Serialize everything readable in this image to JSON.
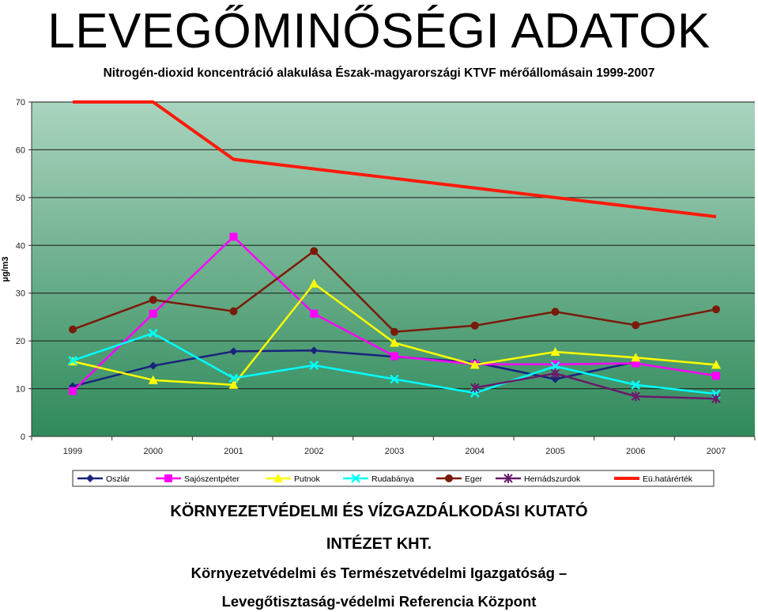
{
  "page": {
    "heading": "LEVEGŐMINŐSÉGI ADATOK",
    "footer_line1": "KÖRNYEZETVÉDELMI ÉS VÍZGAZDÁLKODÁSI KUTATÓ",
    "footer_line2": "INTÉZET KHT.",
    "footer_line3": "Környezetvédelmi és Természetvédelmi Igazgatóság –",
    "footer_line4": "Levegőtisztaság-védelmi Referencia Központ"
  },
  "chart_data": {
    "type": "line",
    "title": "Nitrogén-dioxid koncentráció alakulása Észak-magyarországi KTVF mérőállomásain 1999-2007",
    "xlabel": "",
    "ylabel": "µg/m3",
    "ylim": [
      0,
      70
    ],
    "yticks": [
      0,
      10,
      20,
      30,
      40,
      50,
      60,
      70
    ],
    "categories": [
      "1999",
      "2000",
      "2001",
      "2002",
      "2003",
      "2004",
      "2005",
      "2006",
      "2007"
    ],
    "grid": true,
    "legend_position": "bottom",
    "background_gradient": [
      "#aad4bf",
      "#2f8a5a"
    ],
    "series": [
      {
        "name": "Oszlár",
        "color": "#1a237e",
        "marker": "diamond",
        "values": [
          10.5,
          14.8,
          17.8,
          18.0,
          16.7,
          15.5,
          12.0,
          15.6,
          null
        ]
      },
      {
        "name": "Sajószentpéter",
        "color": "#ff00ff",
        "marker": "square",
        "values": [
          9.5,
          25.7,
          41.8,
          25.7,
          16.8,
          15.1,
          15.1,
          15.3,
          12.7
        ]
      },
      {
        "name": "Putnok",
        "color": "#ffff00",
        "marker": "triangle",
        "values": [
          15.7,
          11.8,
          10.8,
          32.0,
          19.6,
          15.0,
          17.7,
          16.5,
          15.0
        ]
      },
      {
        "name": "Rudabánya",
        "color": "#00ffff",
        "marker": "x",
        "values": [
          15.9,
          21.6,
          12.2,
          14.9,
          12.0,
          9.1,
          14.7,
          10.8,
          8.9
        ]
      },
      {
        "name": "Eger",
        "color": "#7a1a0a",
        "marker": "circle",
        "values": [
          22.4,
          28.6,
          26.2,
          38.8,
          21.9,
          23.2,
          26.1,
          23.3,
          26.6
        ]
      },
      {
        "name": "Hernádszurdok",
        "color": "#6a1a6a",
        "marker": "star",
        "values": [
          null,
          null,
          null,
          null,
          null,
          10.2,
          13.2,
          8.4,
          7.9
        ]
      },
      {
        "name": "Eü.határérték",
        "color": "#ff1a0a",
        "marker": "none",
        "values": [
          70,
          70,
          58,
          56,
          54,
          52,
          50,
          48,
          46
        ]
      }
    ]
  }
}
